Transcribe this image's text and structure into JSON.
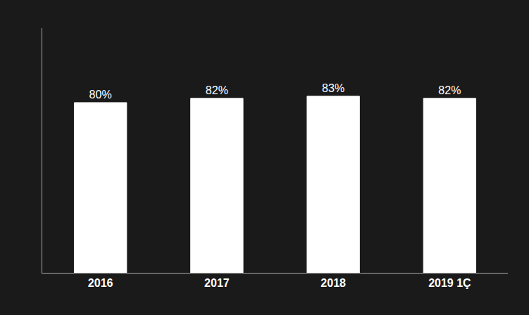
{
  "chart_data": {
    "type": "bar",
    "categories": [
      "2016",
      "2017",
      "2018",
      "2019 1Ç"
    ],
    "values": [
      80,
      82,
      83,
      82
    ],
    "value_labels": [
      "80%",
      "82%",
      "83%",
      "82%"
    ],
    "data_labels": true,
    "color": "#ffffff",
    "ylim": [
      0,
      115
    ],
    "grid": false,
    "tick_labels": "x"
  }
}
